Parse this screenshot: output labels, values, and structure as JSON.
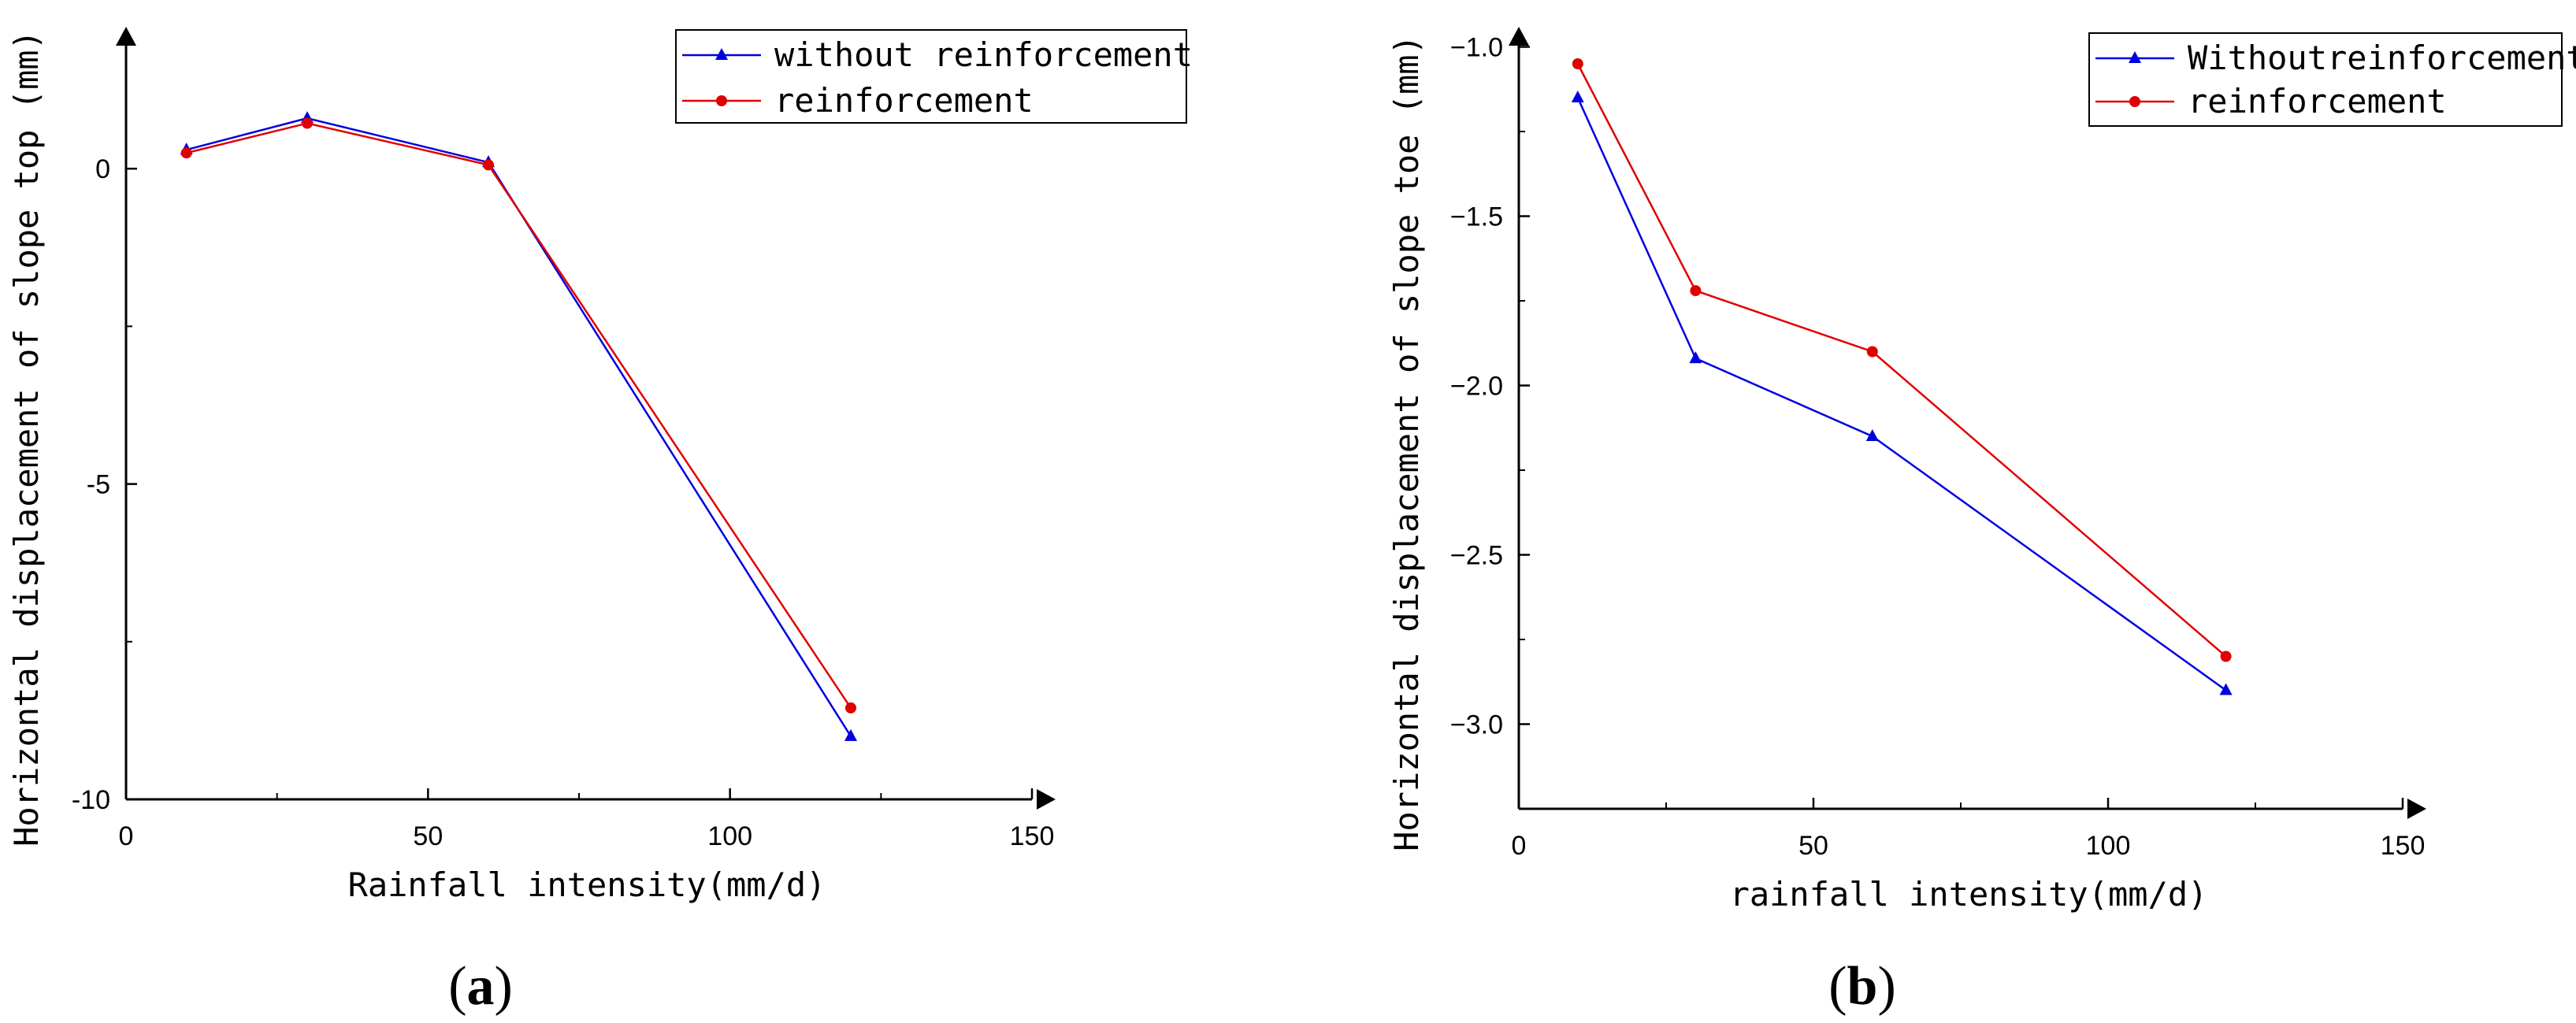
{
  "chart_data": [
    {
      "type": "line",
      "panel_label": "(a)",
      "panel_letter": "a",
      "xlabel": "Rainfall intensity(mm/d)",
      "ylabel": "Horizontal displacement of slope top (mm)",
      "xlim": [
        0,
        150
      ],
      "ylim": [
        -10,
        2.2
      ],
      "x_ticks": [
        0,
        50,
        100,
        150
      ],
      "y_ticks": [
        -10,
        -5,
        0
      ],
      "x": [
        10,
        30,
        60,
        120
      ],
      "series": [
        {
          "name": "without reinforcement",
          "color": "#0000e0",
          "marker": "triangle",
          "values": [
            0.3,
            0.8,
            0.1,
            -9.0
          ]
        },
        {
          "name": "reinforcement",
          "color": "#e00000",
          "marker": "circle",
          "values": [
            0.25,
            0.72,
            0.06,
            -8.55
          ]
        }
      ],
      "legend_position": "top-right",
      "grid": false
    },
    {
      "type": "line",
      "panel_label": "(b)",
      "panel_letter": "b",
      "xlabel": "rainfall intensity(mm/d)",
      "ylabel": "Horizontal displacement of slope toe (mm)",
      "xlim": [
        0,
        150
      ],
      "ylim": [
        -3.25,
        -0.95
      ],
      "x_ticks": [
        0,
        50,
        100,
        150
      ],
      "y_ticks": [
        -3.0,
        -2.5,
        -2.0,
        -1.5,
        -1.0
      ],
      "y_tick_labels": [
        "−3.0",
        "−2.5",
        "−2.0",
        "−1.5",
        "−1.0"
      ],
      "x": [
        10,
        30,
        60,
        120
      ],
      "series": [
        {
          "name": "Withoutreinforcement",
          "color": "#0000e0",
          "marker": "triangle",
          "values": [
            -1.15,
            -1.92,
            -2.15,
            -2.9
          ]
        },
        {
          "name": "reinforcement",
          "color": "#e00000",
          "marker": "circle",
          "values": [
            -1.05,
            -1.72,
            -1.9,
            -2.8
          ]
        }
      ],
      "legend_position": "top-right",
      "grid": false
    }
  ]
}
